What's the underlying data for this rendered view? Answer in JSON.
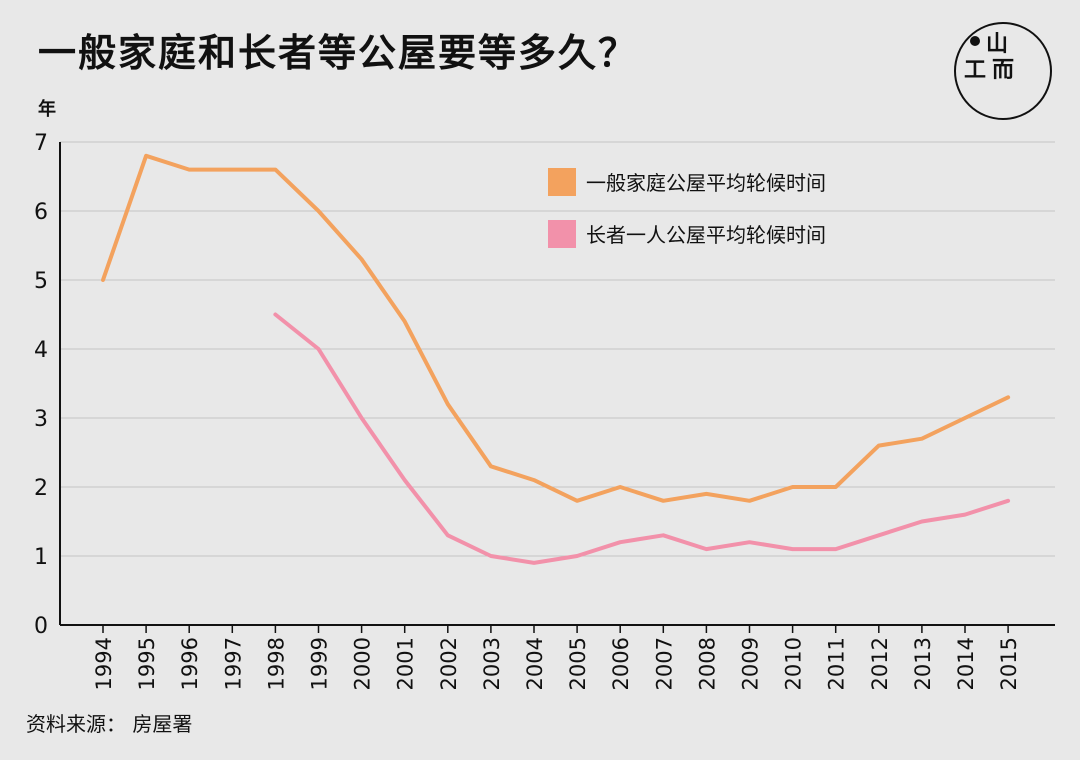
{
  "title": "一般家庭和长者等公屋要等多久？",
  "logo": {
    "glyph_top": "山",
    "glyph_left": "工",
    "glyph_right": "而"
  },
  "source": "资料来源： 房屋署",
  "chart_data": {
    "type": "line",
    "ylabel": "年",
    "xlabel": "",
    "ylim": [
      0,
      7
    ],
    "yticks": [
      0,
      1,
      2,
      3,
      4,
      5,
      6,
      7
    ],
    "grid": true,
    "legend_position": "top-right",
    "categories": [
      "1994",
      "1995",
      "1996",
      "1997",
      "1998",
      "1999",
      "2000",
      "2001",
      "2002",
      "2003",
      "2004",
      "2005",
      "2006",
      "2007",
      "2008",
      "2009",
      "2010",
      "2011",
      "2012",
      "2013",
      "2014",
      "2015"
    ],
    "series": [
      {
        "name": "一般家庭公屋平均轮候时间",
        "color": "#f3a25e",
        "values": [
          5.0,
          6.8,
          6.6,
          6.6,
          6.6,
          6.0,
          5.3,
          4.4,
          3.2,
          2.3,
          2.1,
          1.8,
          2.0,
          1.8,
          1.9,
          1.8,
          2.0,
          2.0,
          2.6,
          2.7,
          3.0,
          3.3
        ]
      },
      {
        "name": "长者一人公屋平均轮候时间",
        "color": "#f291aa",
        "values": [
          null,
          null,
          null,
          null,
          4.5,
          4.0,
          3.0,
          2.1,
          1.3,
          1.0,
          0.9,
          1.0,
          1.2,
          1.3,
          1.1,
          1.2,
          1.1,
          1.1,
          1.3,
          1.5,
          1.6,
          1.8
        ]
      }
    ]
  }
}
